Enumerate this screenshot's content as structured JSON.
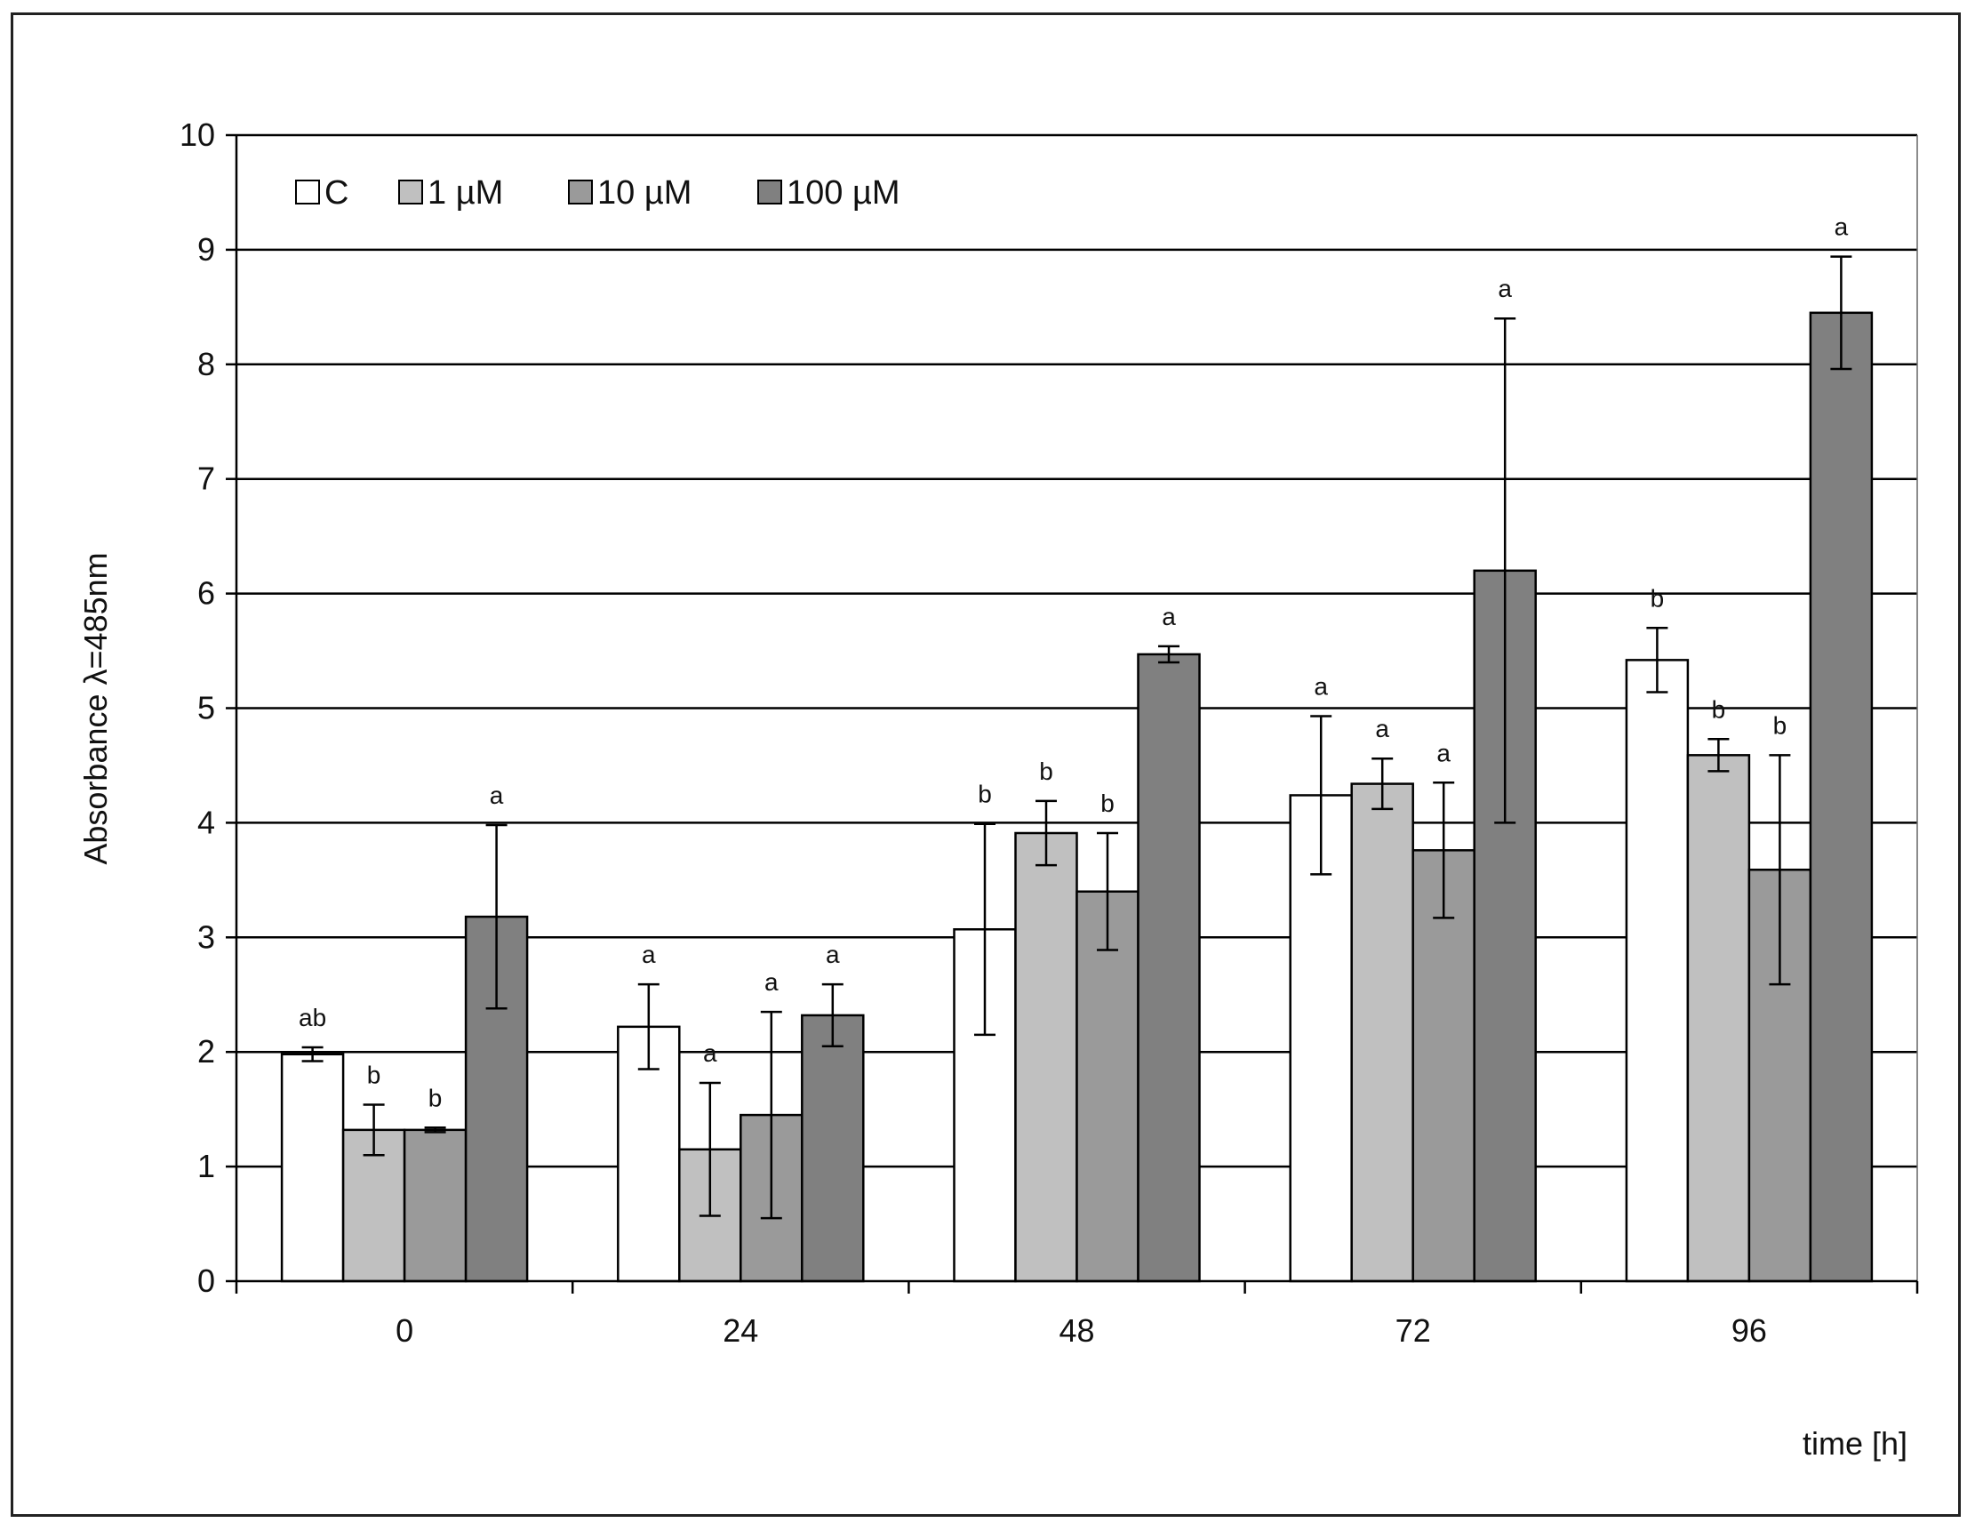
{
  "chart_data": {
    "type": "bar",
    "xlabel": "time [h]",
    "ylabel": "Absorbance λ=485nm",
    "ylim": [
      0,
      10
    ],
    "yticks": [
      "0",
      "1",
      "2",
      "3",
      "4",
      "5",
      "6",
      "7",
      "8",
      "9",
      "10"
    ],
    "categories": [
      "0",
      "24",
      "48",
      "72",
      "96"
    ],
    "grid": "horizontal",
    "legend_position": "top-left",
    "series": [
      {
        "name": "C",
        "color": "#ffffff",
        "values": [
          1.98,
          2.22,
          3.07,
          4.24,
          5.42
        ],
        "errors": [
          0.06,
          0.37,
          0.92,
          0.69,
          0.28
        ],
        "sig": [
          "ab",
          "a",
          "b",
          "a",
          "b"
        ]
      },
      {
        "name": "1 µM",
        "color": "#c0c0c0",
        "values": [
          1.32,
          1.15,
          3.91,
          4.34,
          4.59
        ],
        "errors": [
          0.22,
          0.58,
          0.28,
          0.22,
          0.14
        ],
        "sig": [
          "b",
          "a",
          "b",
          "a",
          "b"
        ]
      },
      {
        "name": "10 µM",
        "color": "#9a9a9a",
        "values": [
          1.32,
          1.45,
          3.4,
          3.76,
          3.59
        ],
        "errors": [
          0.02,
          0.9,
          0.51,
          0.59,
          1.0
        ],
        "sig": [
          "b",
          "a",
          "b",
          "a",
          "b"
        ]
      },
      {
        "name": "100 µM",
        "color": "#808080",
        "values": [
          3.18,
          2.32,
          5.47,
          6.2,
          8.45
        ],
        "errors": [
          0.8,
          0.27,
          0.07,
          2.2,
          0.49
        ],
        "sig": [
          "a",
          "a",
          "a",
          "a",
          "a"
        ]
      }
    ]
  }
}
